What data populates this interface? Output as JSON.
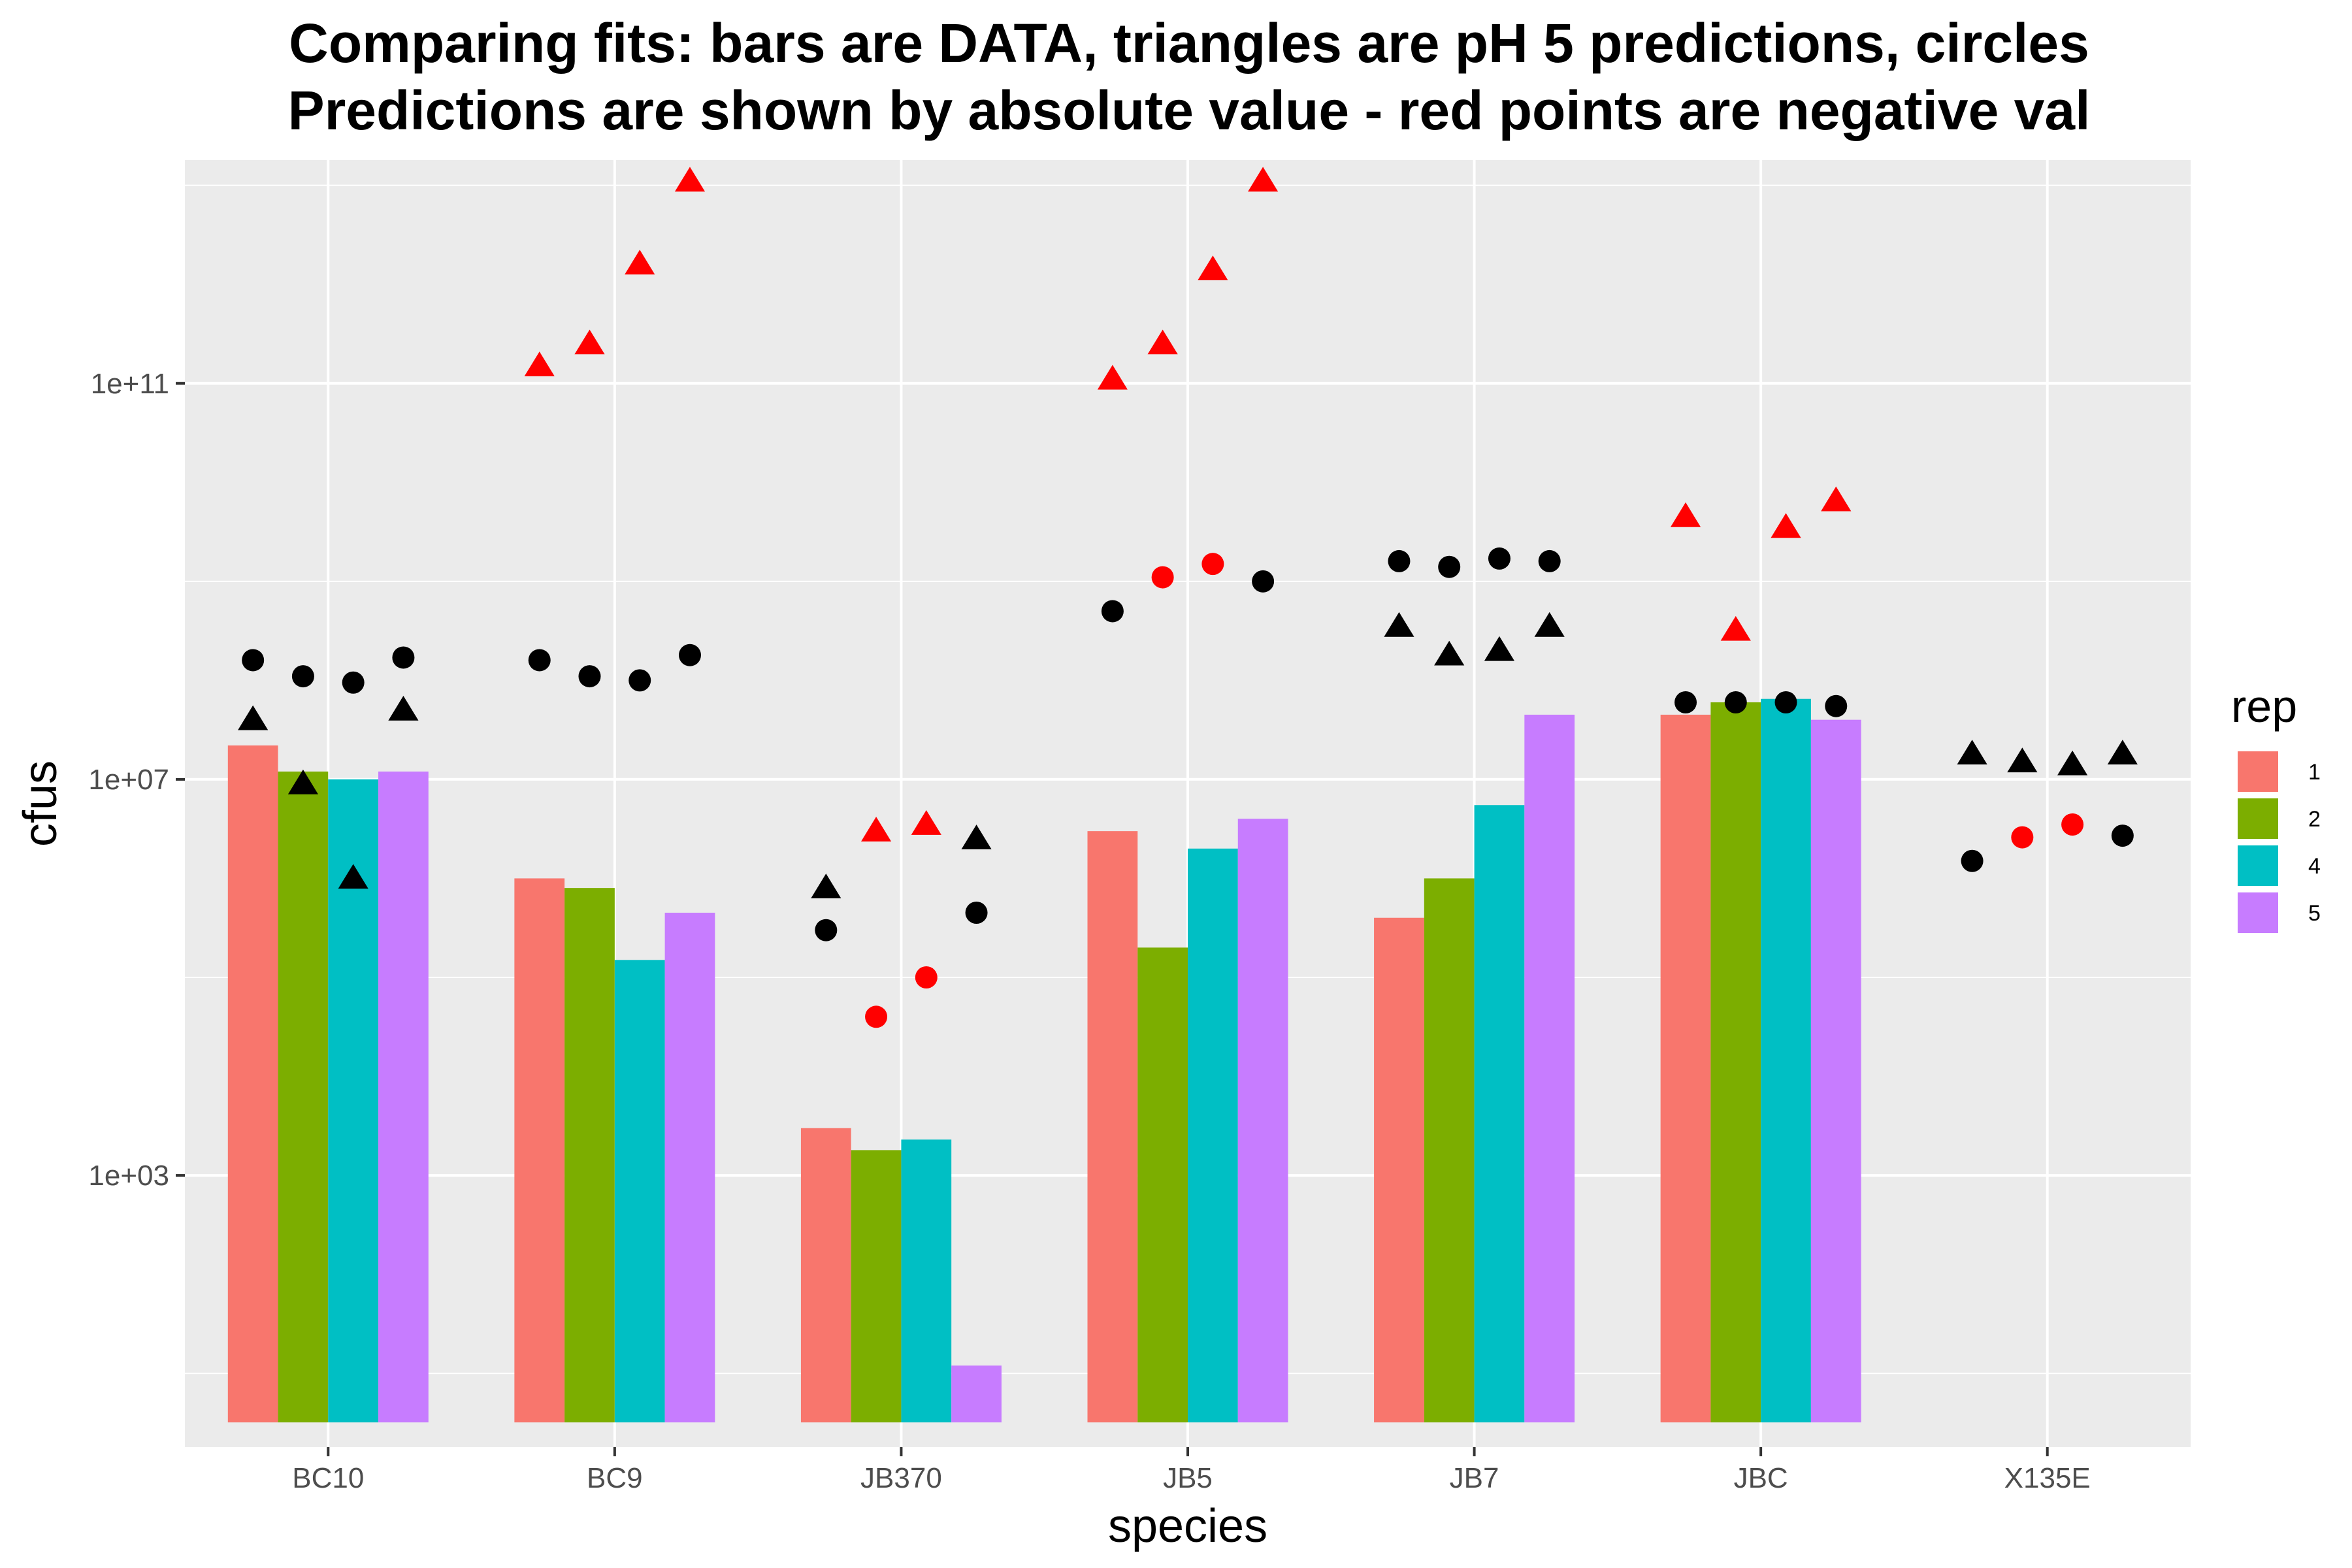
{
  "chart_data": {
    "type": "bar",
    "title_lines": [
      "Comparing fits: bars are DATA, triangles are pH 5 predictions, circles",
      " Predictions are shown by absolute value - red points are negative val"
    ],
    "xlabel": "species",
    "ylabel": "cfus",
    "y_scale": "log10",
    "ylim": [
      1.8,
      18000000000000.0
    ],
    "y_ticks": [
      1000,
      10000000,
      100000000000
    ],
    "y_tick_labels": [
      "1e+03",
      "1e+07",
      "1e+11"
    ],
    "grid": true,
    "categories": [
      "BC10",
      "BC9",
      "JB370",
      "JB5",
      "JB7",
      "JBC",
      "X135E"
    ],
    "legend": {
      "title": "rep",
      "position": "right",
      "entries": [
        {
          "label": "1",
          "color": "#F8766D"
        },
        {
          "label": "2",
          "color": "#7CAE00"
        },
        {
          "label": "4",
          "color": "#00BFC4"
        },
        {
          "label": "5",
          "color": "#C77CFF"
        }
      ]
    },
    "bar_base": 3.2,
    "series": [
      {
        "name": "1",
        "color": "#F8766D",
        "values": [
          22000000,
          1000000,
          3000,
          3000000,
          400000,
          45000000,
          null
        ]
      },
      {
        "name": "2",
        "color": "#7CAE00",
        "values": [
          12000000,
          800000,
          1800,
          200000,
          1000000,
          60000000,
          null
        ]
      },
      {
        "name": "4",
        "color": "#00BFC4",
        "values": [
          10000000,
          150000,
          2300,
          2000000,
          5500000,
          65000000,
          null
        ]
      },
      {
        "name": "5",
        "color": "#C77CFF",
        "values": [
          12000000,
          450000,
          12,
          4000000,
          45000000,
          40000000,
          null
        ]
      }
    ],
    "triangles_ph5": [
      {
        "category": "BC10",
        "rep": "1",
        "value": 40000000,
        "negative": false
      },
      {
        "category": "BC10",
        "rep": "2",
        "value": 9000000,
        "negative": false
      },
      {
        "category": "BC10",
        "rep": "4",
        "value": 1000000,
        "negative": false
      },
      {
        "category": "BC10",
        "rep": "5",
        "value": 50000000,
        "negative": false
      },
      {
        "category": "BC9",
        "rep": "1",
        "value": 150000000000,
        "negative": true
      },
      {
        "category": "BC9",
        "rep": "2",
        "value": 250000000000,
        "negative": true
      },
      {
        "category": "BC9",
        "rep": "4",
        "value": 1600000000000,
        "negative": true
      },
      {
        "category": "BC9",
        "rep": "5",
        "value": 11000000000000,
        "negative": true
      },
      {
        "category": "JB370",
        "rep": "1",
        "value": 800000,
        "negative": false
      },
      {
        "category": "JB370",
        "rep": "2",
        "value": 3000000,
        "negative": true
      },
      {
        "category": "JB370",
        "rep": "4",
        "value": 3500000,
        "negative": true
      },
      {
        "category": "JB370",
        "rep": "5",
        "value": 2500000,
        "negative": false
      },
      {
        "category": "JB5",
        "rep": "1",
        "value": 110000000000,
        "negative": true
      },
      {
        "category": "JB5",
        "rep": "2",
        "value": 250000000000,
        "negative": true
      },
      {
        "category": "JB5",
        "rep": "4",
        "value": 1400000000000,
        "negative": true
      },
      {
        "category": "JB5",
        "rep": "5",
        "value": 11000000000000,
        "negative": true
      },
      {
        "category": "JB7",
        "rep": "1",
        "value": 350000000,
        "negative": false
      },
      {
        "category": "JB7",
        "rep": "2",
        "value": 180000000,
        "negative": false
      },
      {
        "category": "JB7",
        "rep": "4",
        "value": 200000000,
        "negative": false
      },
      {
        "category": "JB7",
        "rep": "5",
        "value": 350000000,
        "negative": false
      },
      {
        "category": "JBC",
        "rep": "1",
        "value": 4500000000,
        "negative": true
      },
      {
        "category": "JBC",
        "rep": "2",
        "value": 320000000,
        "negative": true
      },
      {
        "category": "JBC",
        "rep": "4",
        "value": 3500000000,
        "negative": true
      },
      {
        "category": "JBC",
        "rep": "5",
        "value": 6500000000,
        "negative": true
      },
      {
        "category": "X135E",
        "rep": "1",
        "value": 18000000,
        "negative": false
      },
      {
        "category": "X135E",
        "rep": "2",
        "value": 15000000,
        "negative": false
      },
      {
        "category": "X135E",
        "rep": "4",
        "value": 14000000,
        "negative": false
      },
      {
        "category": "X135E",
        "rep": "5",
        "value": 18000000,
        "negative": false
      }
    ],
    "circles": [
      {
        "category": "BC10",
        "rep": "1",
        "value": 160000000,
        "negative": false
      },
      {
        "category": "BC10",
        "rep": "2",
        "value": 110000000,
        "negative": false
      },
      {
        "category": "BC10",
        "rep": "4",
        "value": 95000000,
        "negative": false
      },
      {
        "category": "BC10",
        "rep": "5",
        "value": 170000000,
        "negative": false
      },
      {
        "category": "BC9",
        "rep": "1",
        "value": 160000000,
        "negative": false
      },
      {
        "category": "BC9",
        "rep": "2",
        "value": 110000000,
        "negative": false
      },
      {
        "category": "BC9",
        "rep": "4",
        "value": 100000000,
        "negative": false
      },
      {
        "category": "BC9",
        "rep": "5",
        "value": 180000000,
        "negative": false
      },
      {
        "category": "JB370",
        "rep": "1",
        "value": 300000,
        "negative": false
      },
      {
        "category": "JB370",
        "rep": "2",
        "value": 40000,
        "negative": true
      },
      {
        "category": "JB370",
        "rep": "4",
        "value": 100000,
        "negative": true
      },
      {
        "category": "JB370",
        "rep": "5",
        "value": 450000,
        "negative": false
      },
      {
        "category": "JB5",
        "rep": "1",
        "value": 500000000,
        "negative": false
      },
      {
        "category": "JB5",
        "rep": "2",
        "value": 1100000000,
        "negative": true
      },
      {
        "category": "JB5",
        "rep": "4",
        "value": 1500000000,
        "negative": true
      },
      {
        "category": "JB5",
        "rep": "5",
        "value": 1000000000,
        "negative": false
      },
      {
        "category": "JB7",
        "rep": "1",
        "value": 1600000000,
        "negative": false
      },
      {
        "category": "JB7",
        "rep": "2",
        "value": 1400000000,
        "negative": false
      },
      {
        "category": "JB7",
        "rep": "4",
        "value": 1700000000,
        "negative": false
      },
      {
        "category": "JB7",
        "rep": "5",
        "value": 1600000000,
        "negative": false
      },
      {
        "category": "JBC",
        "rep": "1",
        "value": 60000000,
        "negative": false
      },
      {
        "category": "JBC",
        "rep": "2",
        "value": 60000000,
        "negative": false
      },
      {
        "category": "JBC",
        "rep": "4",
        "value": 60000000,
        "negative": false
      },
      {
        "category": "JBC",
        "rep": "5",
        "value": 55000000,
        "negative": false
      },
      {
        "category": "X135E",
        "rep": "1",
        "value": 1500000,
        "negative": false
      },
      {
        "category": "X135E",
        "rep": "2",
        "value": 2600000,
        "negative": true
      },
      {
        "category": "X135E",
        "rep": "4",
        "value": 3500000,
        "negative": true
      },
      {
        "category": "X135E",
        "rep": "5",
        "value": 2700000,
        "negative": false
      }
    ],
    "marker_colors": {
      "positive": "#000000",
      "negative": "#FF0000"
    },
    "panel_background": "#EBEBEB",
    "grid_color": "#FFFFFF"
  }
}
